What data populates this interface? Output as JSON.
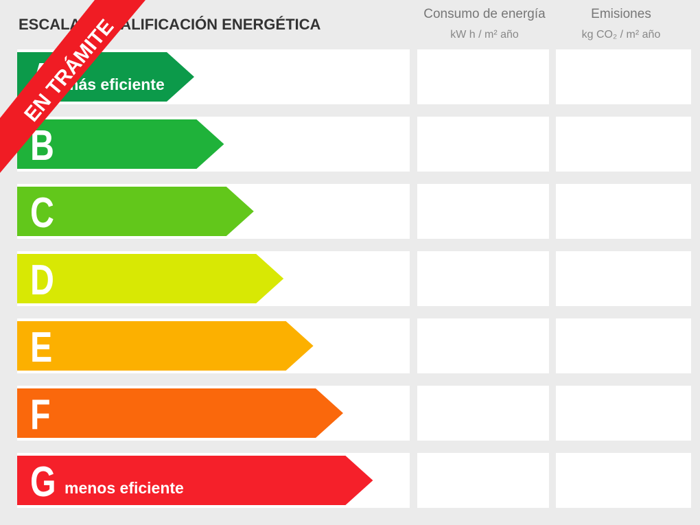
{
  "header": {
    "title": "ESCALA DE CALIFICACIÓN ENERGÉTICA",
    "columns": [
      {
        "title": "Consumo de energía",
        "unit": "kW h / m² año"
      },
      {
        "title": "Emisiones",
        "unit": "kg CO₂ / m² año"
      }
    ]
  },
  "rows": [
    {
      "letter": "A",
      "label": "más eficiente",
      "color": "#0c9a4a"
    },
    {
      "letter": "B",
      "color": "#1fb23a"
    },
    {
      "letter": "C",
      "color": "#62c71b"
    },
    {
      "letter": "D",
      "color": "#d8e804"
    },
    {
      "letter": "E",
      "color": "#fcb000"
    },
    {
      "letter": "F",
      "color": "#fa680c"
    },
    {
      "letter": "G",
      "label": "menos eficiente",
      "color": "#f5202a"
    }
  ],
  "ribbon": {
    "text": "EN TRÁMITE"
  }
}
